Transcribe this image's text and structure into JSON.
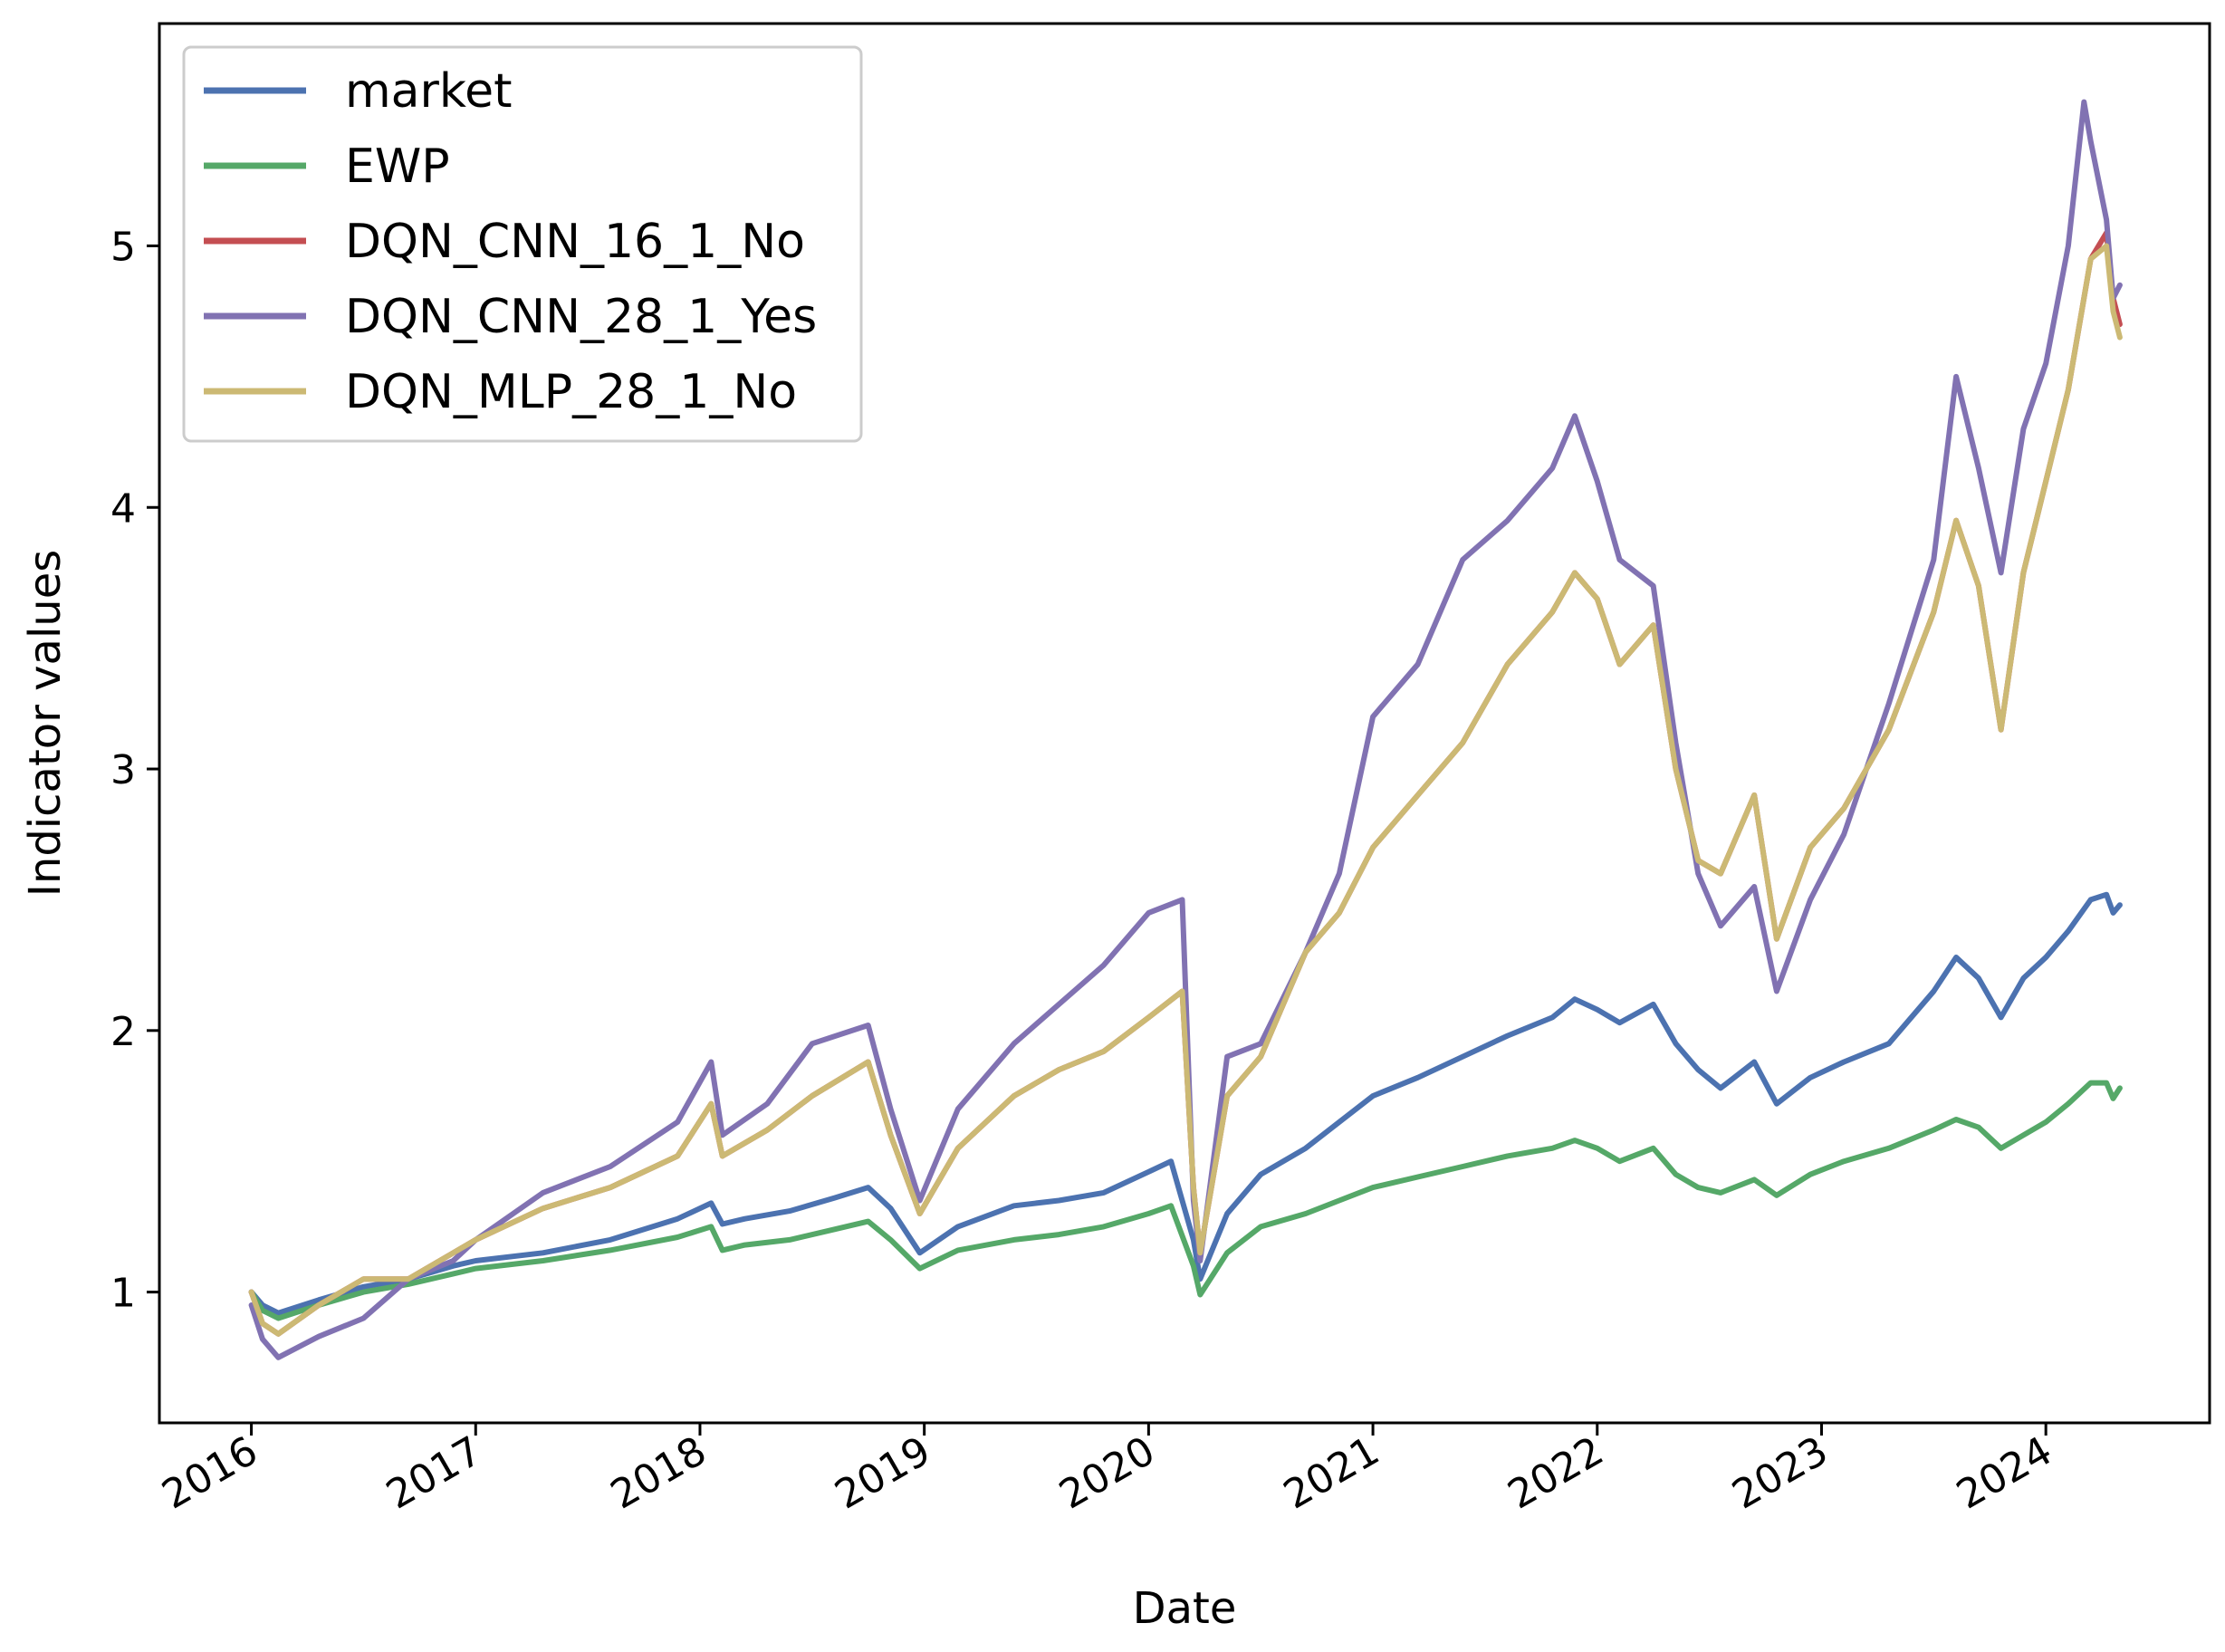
{
  "chart_data": {
    "type": "line",
    "title": "",
    "xlabel": "Date",
    "ylabel": "Indicator values",
    "xlim": [
      2015.59,
      2024.73
    ],
    "ylim": [
      0.5,
      5.85
    ],
    "x_ticks": [
      2016,
      2017,
      2018,
      2019,
      2020,
      2021,
      2022,
      2023,
      2024
    ],
    "x_tick_labels": [
      "2016",
      "2017",
      "2018",
      "2019",
      "2020",
      "2021",
      "2022",
      "2023",
      "2024"
    ],
    "y_ticks": [
      1,
      2,
      3,
      4,
      5
    ],
    "y_tick_labels": [
      "1",
      "2",
      "3",
      "4",
      "5"
    ],
    "grid": false,
    "legend_position": "top-left",
    "series": [
      {
        "name": "market",
        "color": "#4c72b0",
        "points": [
          [
            2016.0,
            1.0
          ],
          [
            2016.05,
            0.95
          ],
          [
            2016.12,
            0.92
          ],
          [
            2016.3,
            0.97
          ],
          [
            2016.5,
            1.02
          ],
          [
            2016.7,
            1.05
          ],
          [
            2016.9,
            1.1
          ],
          [
            2017.0,
            1.12
          ],
          [
            2017.3,
            1.15
          ],
          [
            2017.6,
            1.2
          ],
          [
            2017.9,
            1.28
          ],
          [
            2018.05,
            1.34
          ],
          [
            2018.1,
            1.26
          ],
          [
            2018.2,
            1.28
          ],
          [
            2018.4,
            1.31
          ],
          [
            2018.6,
            1.36
          ],
          [
            2018.75,
            1.4
          ],
          [
            2018.85,
            1.32
          ],
          [
            2018.98,
            1.15
          ],
          [
            2019.15,
            1.25
          ],
          [
            2019.4,
            1.33
          ],
          [
            2019.6,
            1.35
          ],
          [
            2019.8,
            1.38
          ],
          [
            2020.0,
            1.46
          ],
          [
            2020.1,
            1.5
          ],
          [
            2020.2,
            1.2
          ],
          [
            2020.23,
            1.05
          ],
          [
            2020.35,
            1.3
          ],
          [
            2020.5,
            1.45
          ],
          [
            2020.7,
            1.55
          ],
          [
            2020.85,
            1.65
          ],
          [
            2021.0,
            1.75
          ],
          [
            2021.2,
            1.82
          ],
          [
            2021.4,
            1.9
          ],
          [
            2021.6,
            1.98
          ],
          [
            2021.8,
            2.05
          ],
          [
            2021.9,
            2.12
          ],
          [
            2022.0,
            2.08
          ],
          [
            2022.1,
            2.03
          ],
          [
            2022.25,
            2.1
          ],
          [
            2022.35,
            1.95
          ],
          [
            2022.45,
            1.85
          ],
          [
            2022.55,
            1.78
          ],
          [
            2022.7,
            1.88
          ],
          [
            2022.8,
            1.72
          ],
          [
            2022.95,
            1.82
          ],
          [
            2023.1,
            1.88
          ],
          [
            2023.3,
            1.95
          ],
          [
            2023.5,
            2.15
          ],
          [
            2023.6,
            2.28
          ],
          [
            2023.7,
            2.2
          ],
          [
            2023.8,
            2.05
          ],
          [
            2023.9,
            2.2
          ],
          [
            2024.0,
            2.28
          ],
          [
            2024.1,
            2.38
          ],
          [
            2024.2,
            2.5
          ],
          [
            2024.27,
            2.52
          ],
          [
            2024.3,
            2.45
          ],
          [
            2024.33,
            2.48
          ]
        ]
      },
      {
        "name": "EWP",
        "color": "#55a868",
        "points": [
          [
            2016.0,
            1.0
          ],
          [
            2016.05,
            0.93
          ],
          [
            2016.12,
            0.9
          ],
          [
            2016.3,
            0.95
          ],
          [
            2016.5,
            1.0
          ],
          [
            2016.7,
            1.03
          ],
          [
            2016.9,
            1.07
          ],
          [
            2017.0,
            1.09
          ],
          [
            2017.3,
            1.12
          ],
          [
            2017.6,
            1.16
          ],
          [
            2017.9,
            1.21
          ],
          [
            2018.05,
            1.25
          ],
          [
            2018.1,
            1.16
          ],
          [
            2018.2,
            1.18
          ],
          [
            2018.4,
            1.2
          ],
          [
            2018.6,
            1.24
          ],
          [
            2018.75,
            1.27
          ],
          [
            2018.85,
            1.2
          ],
          [
            2018.98,
            1.09
          ],
          [
            2019.15,
            1.16
          ],
          [
            2019.4,
            1.2
          ],
          [
            2019.6,
            1.22
          ],
          [
            2019.8,
            1.25
          ],
          [
            2020.0,
            1.3
          ],
          [
            2020.1,
            1.33
          ],
          [
            2020.2,
            1.1
          ],
          [
            2020.23,
            0.99
          ],
          [
            2020.35,
            1.15
          ],
          [
            2020.5,
            1.25
          ],
          [
            2020.7,
            1.3
          ],
          [
            2020.85,
            1.35
          ],
          [
            2021.0,
            1.4
          ],
          [
            2021.2,
            1.44
          ],
          [
            2021.4,
            1.48
          ],
          [
            2021.6,
            1.52
          ],
          [
            2021.8,
            1.55
          ],
          [
            2021.9,
            1.58
          ],
          [
            2022.0,
            1.55
          ],
          [
            2022.1,
            1.5
          ],
          [
            2022.25,
            1.55
          ],
          [
            2022.35,
            1.45
          ],
          [
            2022.45,
            1.4
          ],
          [
            2022.55,
            1.38
          ],
          [
            2022.7,
            1.43
          ],
          [
            2022.8,
            1.37
          ],
          [
            2022.95,
            1.45
          ],
          [
            2023.1,
            1.5
          ],
          [
            2023.3,
            1.55
          ],
          [
            2023.5,
            1.62
          ],
          [
            2023.6,
            1.66
          ],
          [
            2023.7,
            1.63
          ],
          [
            2023.8,
            1.55
          ],
          [
            2023.9,
            1.6
          ],
          [
            2024.0,
            1.65
          ],
          [
            2024.1,
            1.72
          ],
          [
            2024.2,
            1.8
          ],
          [
            2024.27,
            1.8
          ],
          [
            2024.3,
            1.74
          ],
          [
            2024.33,
            1.78
          ]
        ]
      },
      {
        "name": "DQN_CNN_16_1_No",
        "color": "#c44e52",
        "points": [
          [
            2016.0,
            1.0
          ],
          [
            2016.05,
            0.88
          ],
          [
            2016.12,
            0.84
          ],
          [
            2016.3,
            0.95
          ],
          [
            2016.5,
            1.05
          ],
          [
            2016.7,
            1.05
          ],
          [
            2016.9,
            1.15
          ],
          [
            2017.0,
            1.2
          ],
          [
            2017.3,
            1.32
          ],
          [
            2017.6,
            1.4
          ],
          [
            2017.9,
            1.52
          ],
          [
            2018.05,
            1.72
          ],
          [
            2018.1,
            1.52
          ],
          [
            2018.3,
            1.62
          ],
          [
            2018.5,
            1.75
          ],
          [
            2018.75,
            1.88
          ],
          [
            2018.85,
            1.6
          ],
          [
            2018.98,
            1.3
          ],
          [
            2019.15,
            1.55
          ],
          [
            2019.4,
            1.75
          ],
          [
            2019.6,
            1.85
          ],
          [
            2019.8,
            1.92
          ],
          [
            2020.0,
            2.05
          ],
          [
            2020.15,
            2.15
          ],
          [
            2020.2,
            1.4
          ],
          [
            2020.23,
            1.15
          ],
          [
            2020.35,
            1.75
          ],
          [
            2020.5,
            1.9
          ],
          [
            2020.7,
            2.3
          ],
          [
            2020.85,
            2.45
          ],
          [
            2021.0,
            2.7
          ],
          [
            2021.2,
            2.9
          ],
          [
            2021.4,
            3.1
          ],
          [
            2021.6,
            3.4
          ],
          [
            2021.8,
            3.6
          ],
          [
            2021.9,
            3.75
          ],
          [
            2022.0,
            3.65
          ],
          [
            2022.1,
            3.4
          ],
          [
            2022.25,
            3.55
          ],
          [
            2022.35,
            3.0
          ],
          [
            2022.45,
            2.65
          ],
          [
            2022.55,
            2.6
          ],
          [
            2022.7,
            2.9
          ],
          [
            2022.8,
            2.35
          ],
          [
            2022.95,
            2.7
          ],
          [
            2023.1,
            2.85
          ],
          [
            2023.3,
            3.15
          ],
          [
            2023.5,
            3.6
          ],
          [
            2023.6,
            3.95
          ],
          [
            2023.7,
            3.7
          ],
          [
            2023.8,
            3.15
          ],
          [
            2023.9,
            3.75
          ],
          [
            2024.0,
            4.1
          ],
          [
            2024.1,
            4.45
          ],
          [
            2024.2,
            4.95
          ],
          [
            2024.27,
            5.05
          ],
          [
            2024.3,
            4.8
          ],
          [
            2024.33,
            4.7
          ]
        ]
      },
      {
        "name": "DQN_CNN_28_1_Yes",
        "color": "#8172b2",
        "points": [
          [
            2016.0,
            0.95
          ],
          [
            2016.05,
            0.82
          ],
          [
            2016.12,
            0.75
          ],
          [
            2016.3,
            0.83
          ],
          [
            2016.5,
            0.9
          ],
          [
            2016.7,
            1.05
          ],
          [
            2016.9,
            1.12
          ],
          [
            2017.0,
            1.2
          ],
          [
            2017.3,
            1.38
          ],
          [
            2017.6,
            1.48
          ],
          [
            2017.9,
            1.65
          ],
          [
            2018.05,
            1.88
          ],
          [
            2018.1,
            1.6
          ],
          [
            2018.3,
            1.72
          ],
          [
            2018.5,
            1.95
          ],
          [
            2018.75,
            2.02
          ],
          [
            2018.85,
            1.7
          ],
          [
            2018.98,
            1.35
          ],
          [
            2019.15,
            1.7
          ],
          [
            2019.4,
            1.95
          ],
          [
            2019.6,
            2.1
          ],
          [
            2019.8,
            2.25
          ],
          [
            2020.0,
            2.45
          ],
          [
            2020.15,
            2.5
          ],
          [
            2020.2,
            1.35
          ],
          [
            2020.23,
            1.12
          ],
          [
            2020.35,
            1.9
          ],
          [
            2020.5,
            1.95
          ],
          [
            2020.7,
            2.3
          ],
          [
            2020.85,
            2.6
          ],
          [
            2021.0,
            3.2
          ],
          [
            2021.2,
            3.4
          ],
          [
            2021.4,
            3.8
          ],
          [
            2021.6,
            3.95
          ],
          [
            2021.8,
            4.15
          ],
          [
            2021.9,
            4.35
          ],
          [
            2022.0,
            4.1
          ],
          [
            2022.1,
            3.8
          ],
          [
            2022.25,
            3.7
          ],
          [
            2022.35,
            3.1
          ],
          [
            2022.45,
            2.6
          ],
          [
            2022.55,
            2.4
          ],
          [
            2022.7,
            2.55
          ],
          [
            2022.8,
            2.15
          ],
          [
            2022.95,
            2.5
          ],
          [
            2023.1,
            2.75
          ],
          [
            2023.3,
            3.25
          ],
          [
            2023.5,
            3.8
          ],
          [
            2023.6,
            4.5
          ],
          [
            2023.7,
            4.15
          ],
          [
            2023.8,
            3.75
          ],
          [
            2023.9,
            4.3
          ],
          [
            2024.0,
            4.55
          ],
          [
            2024.1,
            5.0
          ],
          [
            2024.17,
            5.55
          ],
          [
            2024.2,
            5.4
          ],
          [
            2024.27,
            5.1
          ],
          [
            2024.3,
            4.8
          ],
          [
            2024.33,
            4.85
          ]
        ]
      },
      {
        "name": "DQN_MLP_28_1_No",
        "color": "#ccb974",
        "points": [
          [
            2016.0,
            1.0
          ],
          [
            2016.05,
            0.88
          ],
          [
            2016.12,
            0.84
          ],
          [
            2016.3,
            0.95
          ],
          [
            2016.5,
            1.05
          ],
          [
            2016.7,
            1.05
          ],
          [
            2016.9,
            1.15
          ],
          [
            2017.0,
            1.2
          ],
          [
            2017.3,
            1.32
          ],
          [
            2017.6,
            1.4
          ],
          [
            2017.9,
            1.52
          ],
          [
            2018.05,
            1.72
          ],
          [
            2018.1,
            1.52
          ],
          [
            2018.3,
            1.62
          ],
          [
            2018.5,
            1.75
          ],
          [
            2018.75,
            1.88
          ],
          [
            2018.85,
            1.6
          ],
          [
            2018.98,
            1.3
          ],
          [
            2019.15,
            1.55
          ],
          [
            2019.4,
            1.75
          ],
          [
            2019.6,
            1.85
          ],
          [
            2019.8,
            1.92
          ],
          [
            2020.0,
            2.05
          ],
          [
            2020.15,
            2.15
          ],
          [
            2020.2,
            1.4
          ],
          [
            2020.23,
            1.15
          ],
          [
            2020.35,
            1.75
          ],
          [
            2020.5,
            1.9
          ],
          [
            2020.7,
            2.3
          ],
          [
            2020.85,
            2.45
          ],
          [
            2021.0,
            2.7
          ],
          [
            2021.2,
            2.9
          ],
          [
            2021.4,
            3.1
          ],
          [
            2021.6,
            3.4
          ],
          [
            2021.8,
            3.6
          ],
          [
            2021.9,
            3.75
          ],
          [
            2022.0,
            3.65
          ],
          [
            2022.1,
            3.4
          ],
          [
            2022.25,
            3.55
          ],
          [
            2022.35,
            3.0
          ],
          [
            2022.45,
            2.65
          ],
          [
            2022.55,
            2.6
          ],
          [
            2022.7,
            2.9
          ],
          [
            2022.8,
            2.35
          ],
          [
            2022.95,
            2.7
          ],
          [
            2023.1,
            2.85
          ],
          [
            2023.3,
            3.15
          ],
          [
            2023.5,
            3.6
          ],
          [
            2023.6,
            3.95
          ],
          [
            2023.7,
            3.7
          ],
          [
            2023.8,
            3.15
          ],
          [
            2023.9,
            3.75
          ],
          [
            2024.0,
            4.1
          ],
          [
            2024.1,
            4.45
          ],
          [
            2024.2,
            4.95
          ],
          [
            2024.27,
            5.0
          ],
          [
            2024.3,
            4.75
          ],
          [
            2024.33,
            4.65
          ]
        ]
      }
    ]
  }
}
